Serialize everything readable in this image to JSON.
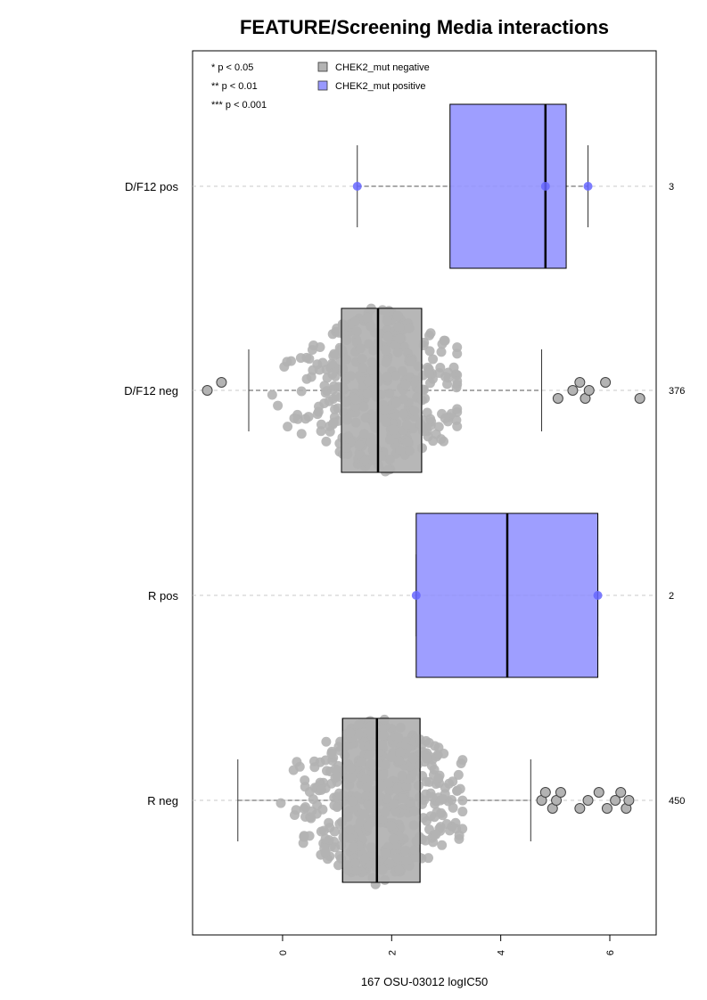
{
  "chart_data": {
    "type": "box",
    "title": "FEATURE/Screening Media interactions",
    "xlabel": "167 OSU-03012 logIC50",
    "xlim": [
      -1.65,
      6.85
    ],
    "xticks": [
      0,
      2,
      4,
      6
    ],
    "significance_legend": [
      "* p < 0.05",
      "** p < 0.01",
      "*** p < 0.001"
    ],
    "legend": [
      {
        "label": "CHEK2_mut negative",
        "color": "#b3b3b3"
      },
      {
        "label": "CHEK2_mut positive",
        "color": "#9999ff"
      }
    ],
    "groups": [
      {
        "label": "D/F12 pos",
        "n": "3",
        "mutant": true,
        "box": {
          "whisker_low": 1.37,
          "q1": 3.07,
          "median": 4.82,
          "q3": 5.2,
          "whisker_high": 5.6
        },
        "points": [
          1.37,
          4.82,
          5.6
        ],
        "outliers": []
      },
      {
        "label": "D/F12 neg",
        "n": "376",
        "mutant": false,
        "box": {
          "whisker_low": -0.62,
          "q1": 1.08,
          "median": 1.75,
          "q3": 2.55,
          "whisker_high": 4.75
        },
        "points_range": [
          -0.6,
          3.2
        ],
        "point_count": 376,
        "outliers": [
          -1.38,
          -1.12,
          5.05,
          5.32,
          5.45,
          5.55,
          5.62,
          5.92,
          6.55
        ]
      },
      {
        "label": "R pos",
        "n": "2",
        "mutant": true,
        "box": {
          "whisker_low": 2.45,
          "q1": 2.45,
          "median": 4.12,
          "q3": 5.78,
          "whisker_high": 5.78
        },
        "points": [
          2.45,
          5.78
        ],
        "outliers": []
      },
      {
        "label": "R neg",
        "n": "450",
        "mutant": false,
        "box": {
          "whisker_low": -0.82,
          "q1": 1.1,
          "median": 1.73,
          "q3": 2.52,
          "whisker_high": 4.55
        },
        "points_range": [
          -0.82,
          3.3
        ],
        "point_count": 450,
        "outliers": [
          4.75,
          4.82,
          4.95,
          5.02,
          5.1,
          5.45,
          5.6,
          5.8,
          5.95,
          6.1,
          6.2,
          6.3,
          6.35
        ]
      }
    ]
  }
}
